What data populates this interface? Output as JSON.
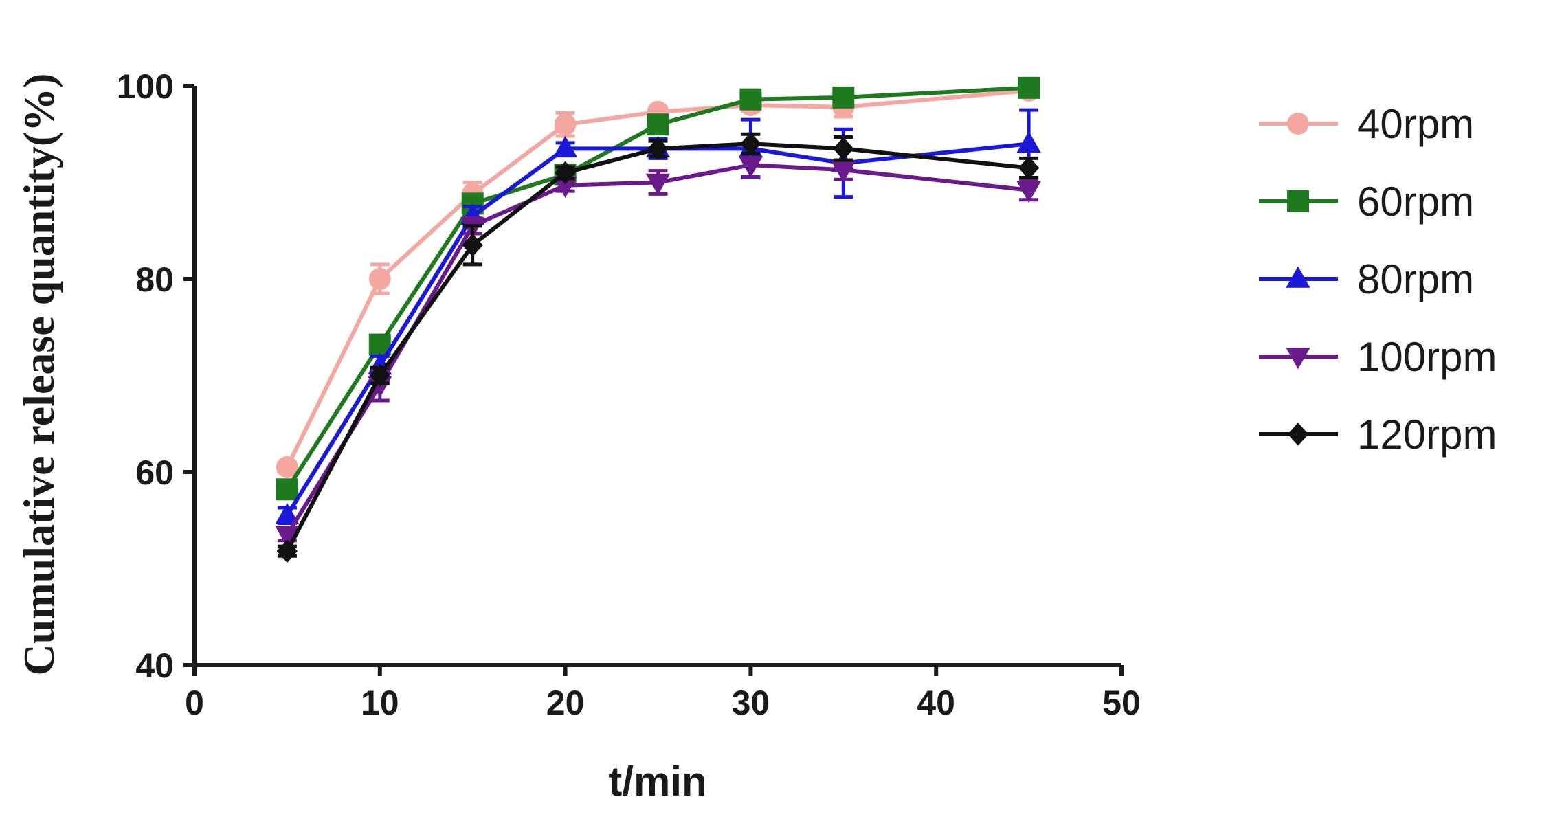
{
  "chart_data": {
    "type": "line",
    "title": "",
    "xlabel": "t/min",
    "ylabel": "Cumulative release quantity(%)",
    "xlim": [
      0,
      50
    ],
    "ylim": [
      40,
      100
    ],
    "xticks": [
      0,
      10,
      20,
      30,
      40,
      50
    ],
    "yticks": [
      40,
      60,
      80,
      100
    ],
    "grid": false,
    "legend_position": "right",
    "x": [
      5,
      10,
      15,
      20,
      25,
      30,
      35,
      45
    ],
    "series": [
      {
        "name": "40rpm",
        "color": "#f4a6a0",
        "marker": "circle",
        "values": [
          60.5,
          80.0,
          88.8,
          96.0,
          97.3,
          98.0,
          97.8,
          99.5
        ],
        "errors": [
          0.5,
          1.5,
          1.2,
          1.2,
          0.5,
          0.6,
          1.0,
          0.6
        ]
      },
      {
        "name": "60rpm",
        "color": "#1f7a1f",
        "marker": "square",
        "values": [
          58.2,
          73.2,
          87.8,
          90.8,
          96.0,
          98.6,
          98.8,
          99.8
        ],
        "errors": [
          0.8,
          0.8,
          0.8,
          0.8,
          0.6,
          0.6,
          0.5,
          0.5
        ]
      },
      {
        "name": "80rpm",
        "color": "#1a1ad6",
        "marker": "triangle-up",
        "values": [
          55.5,
          71.0,
          86.5,
          93.5,
          93.5,
          93.5,
          92.0,
          94.0
        ],
        "errors": [
          0.8,
          1.0,
          1.0,
          0.6,
          1.0,
          3.0,
          3.5,
          3.5
        ]
      },
      {
        "name": "100rpm",
        "color": "#6a1a8a",
        "marker": "triangle-down",
        "values": [
          53.5,
          69.0,
          85.5,
          89.7,
          90.0,
          91.8,
          91.3,
          89.2
        ],
        "errors": [
          0.6,
          1.6,
          0.8,
          0.6,
          1.2,
          1.2,
          1.0,
          1.0
        ]
      },
      {
        "name": "120rpm",
        "color": "#111111",
        "marker": "diamond",
        "values": [
          51.8,
          70.0,
          83.5,
          91.0,
          93.5,
          94.0,
          93.5,
          91.5
        ],
        "errors": [
          0.5,
          0.8,
          2.0,
          0.6,
          0.8,
          1.0,
          1.2,
          1.0
        ]
      }
    ]
  }
}
